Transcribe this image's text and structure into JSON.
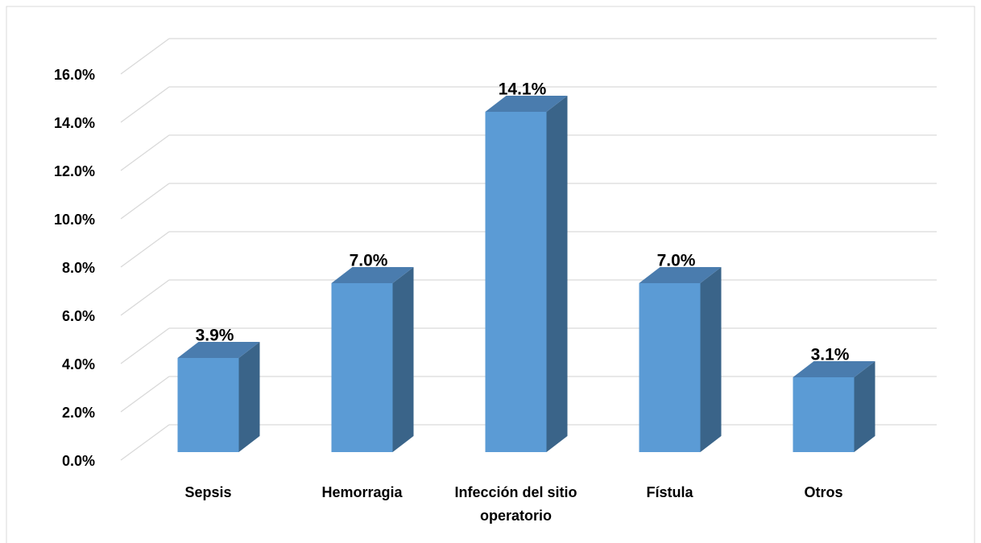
{
  "chart_data": {
    "type": "bar3d",
    "categories": [
      "Sepsis",
      "Hemorragia",
      "Infección del sitio operatorio",
      "Fístula",
      "Otros"
    ],
    "values": [
      3.9,
      7.0,
      14.1,
      7.0,
      3.1
    ],
    "value_labels": [
      "3.9%",
      "7.0%",
      "14.1%",
      "7.0%",
      "3.1%"
    ],
    "color": "#5b9bd5",
    "ylim": [
      0,
      16
    ],
    "yticks": [
      {
        "value": 0,
        "label": "0.0%"
      },
      {
        "value": 2,
        "label": "2.0%"
      },
      {
        "value": 4,
        "label": "4.0%"
      },
      {
        "value": 6,
        "label": "6.0%"
      },
      {
        "value": 8,
        "label": "8.0%"
      },
      {
        "value": 10,
        "label": "10.0%"
      },
      {
        "value": 12,
        "label": "12.0%"
      },
      {
        "value": 14,
        "label": "14.0%"
      },
      {
        "value": 16,
        "label": "16.0%"
      }
    ],
    "grid": true
  }
}
